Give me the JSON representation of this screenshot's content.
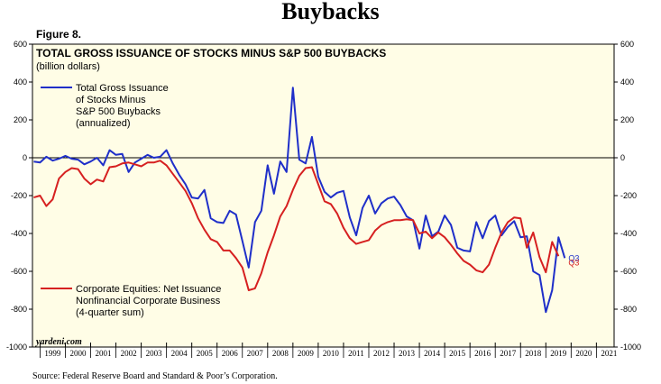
{
  "page": {
    "title": "Buybacks",
    "figure_label": "Figure 8.",
    "source": "Source: Federal Reserve Board and Standard & Poor’s Corporation.",
    "watermark": "yardeni.com"
  },
  "chart_data": {
    "type": "line",
    "title": "TOTAL GROSS ISSUANCE OF STOCKS MINUS S&P 500 BUYBACKS",
    "subtitle": "(billion dollars)",
    "xlabel": "",
    "ylabel": "",
    "ylim": [
      -1000,
      600
    ],
    "xlim": [
      1998.7,
      2021.7
    ],
    "y_ticks": [
      -1000,
      -800,
      -600,
      -400,
      -200,
      0,
      200,
      400,
      600
    ],
    "y_tick_labels": [
      "-1000",
      "-800",
      "-600",
      "-400",
      "-200",
      "0",
      "200",
      "400",
      "600"
    ],
    "x_tick_labels": [
      "1999",
      "2000",
      "2001",
      "2002",
      "2003",
      "2004",
      "2005",
      "2006",
      "2007",
      "2008",
      "2009",
      "2010",
      "2011",
      "2012",
      "2013",
      "2014",
      "2015",
      "2016",
      "2017",
      "2018",
      "2019",
      "2020",
      "2021"
    ],
    "zero_line": true,
    "end_label": "Q3",
    "colors": {
      "background": "#fffde6",
      "zero_line": "#000000",
      "end_label_blue": "#1f2fc9",
      "end_label_red": "#d62020"
    },
    "series": [
      {
        "name": "Total Gross Issuance of Stocks Minus S&P 500 Buybacks (annualized)",
        "legend": [
          "Total Gross Issuance",
          "of Stocks Minus",
          "S&P 500 Buybacks",
          "(annualized)"
        ],
        "color": "#1f2fc9",
        "x": [
          1998.75,
          1999.0,
          1999.25,
          1999.5,
          1999.75,
          2000.0,
          2000.25,
          2000.5,
          2000.75,
          2001.0,
          2001.25,
          2001.5,
          2001.75,
          2002.0,
          2002.25,
          2002.5,
          2002.75,
          2003.0,
          2003.25,
          2003.5,
          2003.75,
          2004.0,
          2004.25,
          2004.5,
          2004.75,
          2005.0,
          2005.25,
          2005.5,
          2005.75,
          2006.0,
          2006.25,
          2006.5,
          2006.75,
          2007.0,
          2007.25,
          2007.5,
          2007.75,
          2008.0,
          2008.25,
          2008.5,
          2008.75,
          2009.0,
          2009.25,
          2009.5,
          2009.75,
          2010.0,
          2010.25,
          2010.5,
          2010.75,
          2011.0,
          2011.25,
          2011.5,
          2011.75,
          2012.0,
          2012.25,
          2012.5,
          2012.75,
          2013.0,
          2013.25,
          2013.5,
          2013.75,
          2014.0,
          2014.25,
          2014.5,
          2014.75,
          2015.0,
          2015.25,
          2015.5,
          2015.75,
          2016.0,
          2016.25,
          2016.5,
          2016.75,
          2017.0,
          2017.25,
          2017.5,
          2017.75,
          2018.0,
          2018.25,
          2018.5,
          2018.75,
          2019.0,
          2019.25,
          2019.5,
          2019.75
        ],
        "values": [
          -20,
          -25,
          5,
          -15,
          -5,
          10,
          -5,
          -10,
          -35,
          -20,
          0,
          -40,
          40,
          15,
          20,
          -75,
          -25,
          -5,
          15,
          0,
          5,
          40,
          -30,
          -90,
          -140,
          -210,
          -215,
          -170,
          -320,
          -340,
          -345,
          -280,
          -300,
          -440,
          -580,
          -340,
          -280,
          -40,
          -190,
          -20,
          -75,
          370,
          -10,
          -30,
          110,
          -100,
          -180,
          -210,
          -185,
          -175,
          -315,
          -410,
          -265,
          -200,
          -295,
          -240,
          -215,
          -205,
          -250,
          -310,
          -330,
          -480,
          -305,
          -415,
          -390,
          -305,
          -355,
          -475,
          -490,
          -495,
          -340,
          -425,
          -335,
          -305,
          -410,
          -365,
          -335,
          -420,
          -415,
          -600,
          -620,
          -815,
          -700,
          -420,
          -530
        ]
      },
      {
        "name": "Corporate Equities: Net Issuance Nonfinancial Corporate Business (4-quarter sum)",
        "legend": [
          "Corporate Equities: Net Issuance",
          "Nonfinancial Corporate Business",
          "(4-quarter sum)"
        ],
        "color": "#d62020",
        "x": [
          1998.75,
          1999.0,
          1999.25,
          1999.5,
          1999.75,
          2000.0,
          2000.25,
          2000.5,
          2000.75,
          2001.0,
          2001.25,
          2001.5,
          2001.75,
          2002.0,
          2002.25,
          2002.5,
          2002.75,
          2003.0,
          2003.25,
          2003.5,
          2003.75,
          2004.0,
          2004.25,
          2004.5,
          2004.75,
          2005.0,
          2005.25,
          2005.5,
          2005.75,
          2006.0,
          2006.25,
          2006.5,
          2006.75,
          2007.0,
          2007.25,
          2007.5,
          2007.75,
          2008.0,
          2008.25,
          2008.5,
          2008.75,
          2009.0,
          2009.25,
          2009.5,
          2009.75,
          2010.0,
          2010.25,
          2010.5,
          2010.75,
          2011.0,
          2011.25,
          2011.5,
          2011.75,
          2012.0,
          2012.25,
          2012.5,
          2012.75,
          2013.0,
          2013.25,
          2013.5,
          2013.75,
          2014.0,
          2014.25,
          2014.5,
          2014.75,
          2015.0,
          2015.25,
          2015.5,
          2015.75,
          2016.0,
          2016.25,
          2016.5,
          2016.75,
          2017.0,
          2017.25,
          2017.5,
          2017.75,
          2018.0,
          2018.25,
          2018.5,
          2018.75,
          2019.0,
          2019.25,
          2019.5
        ],
        "values": [
          -210,
          -200,
          -255,
          -220,
          -110,
          -75,
          -55,
          -60,
          -110,
          -140,
          -115,
          -125,
          -50,
          -45,
          -30,
          -25,
          -35,
          -45,
          -25,
          -25,
          -15,
          -40,
          -85,
          -130,
          -175,
          -240,
          -320,
          -380,
          -430,
          -445,
          -490,
          -490,
          -530,
          -580,
          -700,
          -690,
          -610,
          -500,
          -410,
          -310,
          -255,
          -170,
          -95,
          -55,
          -50,
          -140,
          -230,
          -245,
          -295,
          -370,
          -425,
          -455,
          -445,
          -435,
          -385,
          -355,
          -340,
          -330,
          -330,
          -325,
          -330,
          -400,
          -390,
          -425,
          -395,
          -420,
          -460,
          -505,
          -545,
          -565,
          -595,
          -605,
          -565,
          -475,
          -395,
          -340,
          -315,
          -320,
          -475,
          -395,
          -525,
          -605,
          -445,
          -520
        ]
      }
    ]
  }
}
